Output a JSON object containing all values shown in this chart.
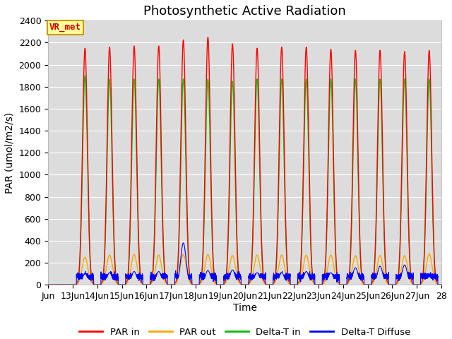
{
  "title": "Photosynthetic Active Radiation",
  "ylabel": "PAR (umol/m2/s)",
  "xlabel": "Time",
  "ylim": [
    0,
    2400
  ],
  "yticks": [
    0,
    200,
    400,
    600,
    800,
    1000,
    1200,
    1400,
    1600,
    1800,
    2000,
    2200,
    2400
  ],
  "xtick_labels": [
    "Jun",
    "13Jun",
    "14Jun",
    "15Jun",
    "16Jun",
    "17Jun",
    "18Jun",
    "19Jun",
    "20Jun",
    "21Jun",
    "22Jun",
    "23Jun",
    "24Jun",
    "25Jun",
    "26Jun",
    "27Jun",
    "28"
  ],
  "legend_labels": [
    "PAR in",
    "PAR out",
    "Delta-T in",
    "Delta-T Diffuse"
  ],
  "legend_colors": [
    "#ff0000",
    "#ffa500",
    "#00bb00",
    "#0000ff"
  ],
  "annotation_text": "VR_met",
  "annotation_color": "#cc0000",
  "annotation_bg": "#ffff99",
  "annotation_border": "#cc9900",
  "plot_bg_color": "#dcdcdc",
  "par_in_color": "#ff0000",
  "par_out_color": "#ffa500",
  "delta_t_in_color": "#00cc00",
  "delta_t_diffuse_color": "#0000ff",
  "par_in_peaks": [
    2150,
    2160,
    2170,
    2170,
    2225,
    2250,
    2190,
    2150,
    2160,
    2160,
    2140,
    2130,
    2130,
    2120,
    2130,
    2160
  ],
  "par_out_peaks": [
    250,
    270,
    275,
    270,
    275,
    275,
    265,
    270,
    270,
    270,
    270,
    265,
    265,
    265,
    280,
    290
  ],
  "delta_t_in_peaks": [
    1900,
    1870,
    1870,
    1870,
    1870,
    1870,
    1850,
    1870,
    1870,
    1870,
    1870,
    1870,
    1870,
    1870,
    1870,
    1900
  ],
  "delta_t_diffuse_peaks": [
    100,
    110,
    120,
    120,
    380,
    130,
    135,
    110,
    110,
    120,
    110,
    155,
    170,
    180,
    75,
    70
  ],
  "title_fontsize": 13,
  "label_fontsize": 10,
  "tick_fontsize": 9
}
